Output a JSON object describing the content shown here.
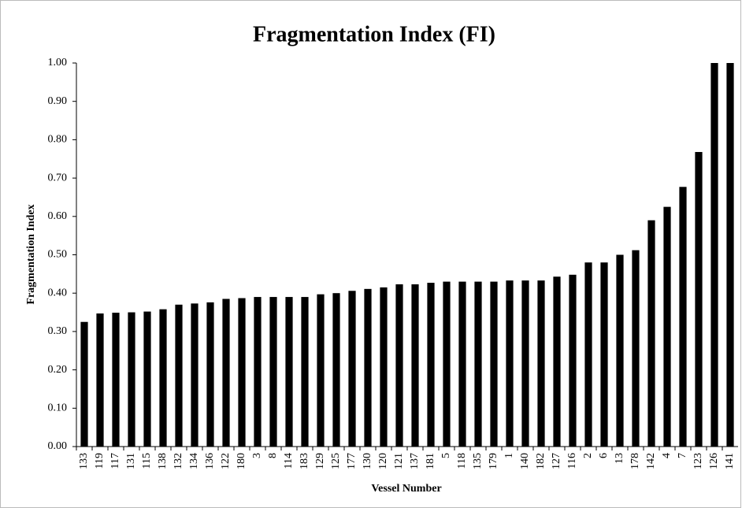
{
  "chart_data": {
    "type": "bar",
    "title": "Fragmentation Index (FI)",
    "x_label": "Vessel Number",
    "y_label": "Fragmentation Index",
    "categories": [
      "133",
      "119",
      "117",
      "131",
      "115",
      "138",
      "132",
      "134",
      "136",
      "122",
      "180",
      "3",
      "8",
      "114",
      "183",
      "129",
      "125",
      "177",
      "130",
      "120",
      "121",
      "137",
      "181",
      "5",
      "118",
      "135",
      "179",
      "1",
      "140",
      "182",
      "127",
      "116",
      "2",
      "6",
      "13",
      "178",
      "142",
      "4",
      "7",
      "123",
      "126",
      "141"
    ],
    "values": [
      0.325,
      0.347,
      0.349,
      0.35,
      0.352,
      0.358,
      0.37,
      0.373,
      0.376,
      0.385,
      0.387,
      0.39,
      0.39,
      0.39,
      0.39,
      0.397,
      0.4,
      0.406,
      0.411,
      0.415,
      0.423,
      0.423,
      0.427,
      0.43,
      0.43,
      0.43,
      0.43,
      0.433,
      0.433,
      0.433,
      0.443,
      0.448,
      0.48,
      0.48,
      0.5,
      0.512,
      0.59,
      0.625,
      0.677,
      0.768,
      1.0,
      1.0
    ],
    "color": "#000000",
    "ylim": [
      0,
      1
    ],
    "yticks": [
      {
        "value": 0,
        "label": "0.00"
      },
      {
        "value": 0.1,
        "label": "0.10"
      },
      {
        "value": 0.2,
        "label": "0.20"
      },
      {
        "value": 0.3,
        "label": "0.30"
      },
      {
        "value": 0.4,
        "label": "0.40"
      },
      {
        "value": 0.5,
        "label": "0.50"
      },
      {
        "value": 0.6,
        "label": "0.60"
      },
      {
        "value": 0.7,
        "label": "0.70"
      },
      {
        "value": 0.8,
        "label": "0.80"
      },
      {
        "value": 0.9,
        "label": "0.90"
      },
      {
        "value": 1,
        "label": "1.00"
      }
    ],
    "grid": false
  }
}
